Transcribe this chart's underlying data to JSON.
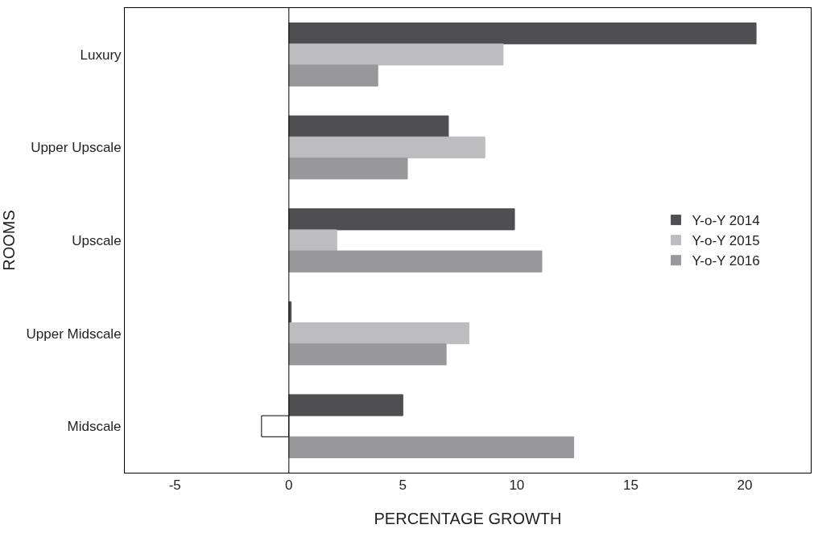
{
  "chart_data": {
    "type": "bar",
    "orientation": "horizontal",
    "xlabel": "PERCENTAGE GROWTH",
    "ylabel": "ROOMS",
    "categories": [
      "Luxury",
      "Upper Upscale",
      "Upscale",
      "Upper Midscale",
      "Midscale"
    ],
    "series": [
      {
        "name": "Y-o-Y 2014",
        "color": "#4f4f51",
        "values": [
          20.5,
          7.0,
          9.9,
          0.1,
          5.0
        ]
      },
      {
        "name": "Y-o-Y 2015",
        "color": "#bdbdbf",
        "colors": [
          "#bdbdbf",
          "#bdbdbf",
          "#bdbdbf",
          "#bdbdbf",
          "#ffffff"
        ],
        "values": [
          9.4,
          8.6,
          2.1,
          7.9,
          -1.2
        ]
      },
      {
        "name": "Y-o-Y 2016",
        "color": "#98989a",
        "values": [
          3.9,
          5.2,
          11.1,
          6.9,
          12.5
        ]
      }
    ],
    "xlim": [
      -7.2,
      22.9
    ],
    "xticks": [
      -5,
      0,
      5,
      10,
      15,
      20
    ],
    "ref_lines": [
      {
        "axis": "x",
        "value": 0,
        "color": "#000000"
      }
    ],
    "legend": "right"
  }
}
